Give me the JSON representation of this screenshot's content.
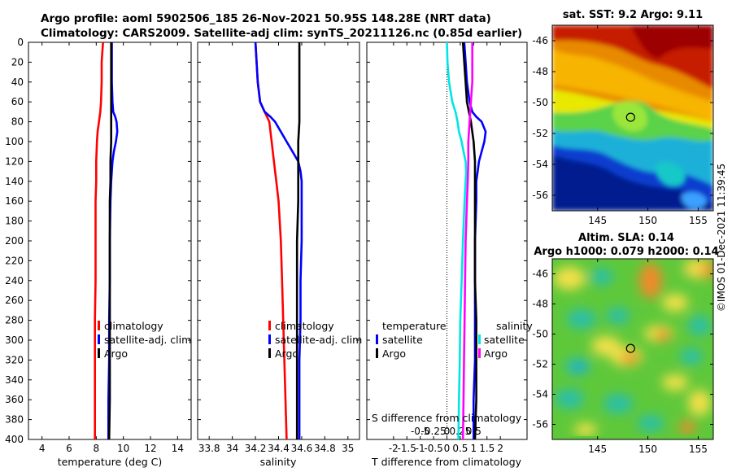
{
  "title_line1": "Argo profile: aoml 5902506_185 26-Nov-2021 50.95S 148.28E (NRT data)",
  "title_line2": "Climatology: CARS2009. Satellite-adj clim: synTS_20211126.nc (0.85d earlier)",
  "colors": {
    "climatology": "#ff0000",
    "satellite": "#0000ff",
    "argo": "#000000",
    "sal_satellite": "#00e5e5",
    "sal_argo": "#ff00ff"
  },
  "depth_axis": {
    "ylim": [
      0,
      400
    ],
    "ticks": [
      "0",
      "20",
      "40",
      "60",
      "80",
      "100",
      "120",
      "140",
      "160",
      "180",
      "200",
      "220",
      "240",
      "260",
      "280",
      "300",
      "320",
      "340",
      "360",
      "380",
      "400"
    ]
  },
  "chart_data": [
    {
      "type": "line",
      "title": "",
      "xlabel": "temperature (deg C)",
      "ylabel": "",
      "xlim": [
        3,
        15
      ],
      "ylim": [
        0,
        400
      ],
      "x_ticks": [
        "4",
        "6",
        "8",
        "10",
        "12",
        "14"
      ],
      "legend": [
        {
          "label": "climatology",
          "color": "#ff0000"
        },
        {
          "label": "satellite-adj. clim",
          "color": "#0000ff"
        },
        {
          "label": "Argo",
          "color": "#000000"
        }
      ],
      "series": [
        {
          "name": "climatology",
          "color": "#ff0000",
          "depth": [
            0,
            10,
            20,
            40,
            60,
            70,
            80,
            90,
            100,
            120,
            140,
            160,
            180,
            200,
            240,
            280,
            320,
            360,
            400
          ],
          "values": [
            8.5,
            8.45,
            8.4,
            8.4,
            8.35,
            8.3,
            8.2,
            8.1,
            8.05,
            8.0,
            8.0,
            7.95,
            7.95,
            7.95,
            7.95,
            7.9,
            7.9,
            7.9,
            7.9
          ]
        },
        {
          "name": "satellite-adj. clim",
          "color": "#0000ff",
          "depth": [
            0,
            20,
            40,
            60,
            70,
            75,
            80,
            90,
            100,
            110,
            120,
            130,
            140,
            160,
            200,
            240,
            280,
            320,
            360,
            400
          ],
          "values": [
            9.15,
            9.15,
            9.15,
            9.2,
            9.25,
            9.4,
            9.5,
            9.55,
            9.45,
            9.3,
            9.2,
            9.15,
            9.1,
            9.05,
            9.0,
            9.0,
            8.95,
            8.95,
            8.9,
            8.9
          ]
        },
        {
          "name": "Argo",
          "color": "#000000",
          "depth": [
            0,
            20,
            40,
            60,
            80,
            100,
            120,
            140,
            160,
            200,
            240,
            280,
            320,
            360,
            400
          ],
          "values": [
            9.1,
            9.1,
            9.1,
            9.1,
            9.1,
            9.1,
            9.05,
            9.05,
            9.0,
            9.0,
            9.0,
            9.0,
            9.0,
            9.0,
            8.95
          ]
        }
      ]
    },
    {
      "type": "line",
      "title": "",
      "xlabel": "salinity",
      "ylabel": "",
      "xlim": [
        33.7,
        35.1
      ],
      "ylim": [
        0,
        400
      ],
      "x_ticks": [
        "33.8",
        "34",
        "34.2",
        "34.4",
        "34.6",
        "34.8",
        "35"
      ],
      "legend": [
        {
          "label": "climatology",
          "color": "#ff0000"
        },
        {
          "label": "satellite-adj. clim",
          "color": "#0000ff"
        },
        {
          "label": "Argo",
          "color": "#000000"
        }
      ],
      "series": [
        {
          "name": "climatology",
          "color": "#ff0000",
          "depth": [
            0,
            20,
            40,
            60,
            70,
            80,
            100,
            120,
            140,
            160,
            200,
            240,
            280,
            320,
            360,
            400
          ],
          "values": [
            34.2,
            34.21,
            34.22,
            34.24,
            34.28,
            34.32,
            34.34,
            34.36,
            34.38,
            34.4,
            34.42,
            34.43,
            34.44,
            34.45,
            34.46,
            34.47
          ]
        },
        {
          "name": "satellite-adj. clim",
          "color": "#0000ff",
          "depth": [
            0,
            20,
            40,
            60,
            70,
            75,
            80,
            90,
            100,
            110,
            120,
            130,
            140,
            160,
            200,
            240,
            280,
            320,
            360,
            400
          ],
          "values": [
            34.2,
            34.21,
            34.22,
            34.24,
            34.28,
            34.33,
            34.37,
            34.42,
            34.47,
            34.52,
            34.57,
            34.59,
            34.6,
            34.6,
            34.6,
            34.59,
            34.59,
            34.58,
            34.58,
            34.58
          ]
        },
        {
          "name": "Argo",
          "color": "#000000",
          "depth": [
            0,
            20,
            40,
            60,
            80,
            100,
            120,
            140,
            160,
            200,
            240,
            280,
            320,
            360,
            400
          ],
          "values": [
            34.58,
            34.58,
            34.58,
            34.58,
            34.58,
            34.57,
            34.57,
            34.57,
            34.57,
            34.56,
            34.56,
            34.56,
            34.56,
            34.56,
            34.56
          ]
        }
      ]
    },
    {
      "type": "line",
      "title": "",
      "xlabel": "T difference from climatology",
      "top_label": "S difference from climatology",
      "ylabel": "",
      "xlim": [
        -3,
        3
      ],
      "ylim": [
        0,
        400
      ],
      "x_ticks": [
        "-2",
        "-1.5",
        "-1",
        "-0.5",
        "0",
        "0.5",
        "1",
        "1.5",
        "2"
      ],
      "s_ticks": [
        "-0.5",
        "-0.25",
        "0",
        "0.25",
        "0.5"
      ],
      "legend_temperature_title": "temperature",
      "legend_salinity_title": "salinity",
      "legend": [
        {
          "label": "satellite",
          "color": "#0000ff"
        },
        {
          "label": "Argo",
          "color": "#000000"
        },
        {
          "label": "satellite",
          "color": "#00e5e5"
        },
        {
          "label": "Argo",
          "color": "#ff00ff"
        }
      ],
      "series": [
        {
          "name": "T satellite",
          "color": "#0000ff",
          "depth": [
            0,
            20,
            40,
            60,
            70,
            75,
            80,
            90,
            100,
            110,
            120,
            130,
            140,
            160,
            200,
            240,
            280,
            320,
            360,
            400
          ],
          "values": [
            0.65,
            0.7,
            0.75,
            0.85,
            0.95,
            1.1,
            1.3,
            1.45,
            1.4,
            1.3,
            1.2,
            1.15,
            1.1,
            1.1,
            1.05,
            1.05,
            1.05,
            1.05,
            1.0,
            1.0
          ]
        },
        {
          "name": "T Argo",
          "color": "#000000",
          "depth": [
            0,
            20,
            40,
            60,
            80,
            100,
            120,
            140,
            160,
            200,
            240,
            280,
            320,
            360,
            400
          ],
          "values": [
            0.6,
            0.65,
            0.7,
            0.75,
            0.9,
            1.0,
            1.05,
            1.05,
            1.05,
            1.05,
            1.05,
            1.1,
            1.1,
            1.1,
            1.05
          ]
        },
        {
          "name": "S satellite",
          "color": "#00e5e5",
          "depth": [
            0,
            20,
            40,
            60,
            70,
            80,
            90,
            100,
            110,
            120,
            130,
            140,
            160,
            200,
            240,
            280,
            320,
            360,
            400
          ],
          "values": [
            0.0,
            0.02,
            0.08,
            0.2,
            0.32,
            0.4,
            0.45,
            0.55,
            0.62,
            0.7,
            0.72,
            0.7,
            0.66,
            0.6,
            0.55,
            0.5,
            0.48,
            0.45,
            0.43
          ]
        },
        {
          "name": "S Argo",
          "color": "#ff00ff",
          "depth": [
            0,
            20,
            40,
            60,
            80,
            100,
            120,
            140,
            160,
            200,
            240,
            280,
            320,
            360,
            400
          ],
          "values": [
            0.95,
            0.95,
            0.95,
            0.9,
            0.85,
            0.8,
            0.8,
            0.78,
            0.75,
            0.7,
            0.68,
            0.66,
            0.64,
            0.62,
            0.6
          ]
        }
      ]
    },
    {
      "type": "heatmap",
      "title": "sat. SST: 9.2 Argo: 9.11",
      "xlabel": "",
      "ylabel": "",
      "xlim": [
        140.5,
        156.5
      ],
      "ylim": [
        -57,
        -45
      ],
      "x_ticks": [
        "145",
        "150",
        "155"
      ],
      "y_ticks": [
        "-46",
        "-48",
        "-50",
        "-52",
        "-54",
        "-56"
      ],
      "marker": {
        "lon": 148.28,
        "lat": -50.95
      }
    },
    {
      "type": "heatmap",
      "title_line1": "Altim. SLA: 0.14",
      "title_line2": "Argo h1000: 0.079 h2000: 0.14",
      "xlabel": "",
      "ylabel": "",
      "xlim": [
        140.5,
        156.5
      ],
      "ylim": [
        -57,
        -45
      ],
      "x_ticks": [
        "145",
        "150",
        "155"
      ],
      "y_ticks": [
        "-46",
        "-48",
        "-50",
        "-52",
        "-54",
        "-56"
      ],
      "marker": {
        "lon": 148.28,
        "lat": -50.95
      }
    }
  ],
  "credit": "©IMOS 01-Dec-2021 11:39:45"
}
